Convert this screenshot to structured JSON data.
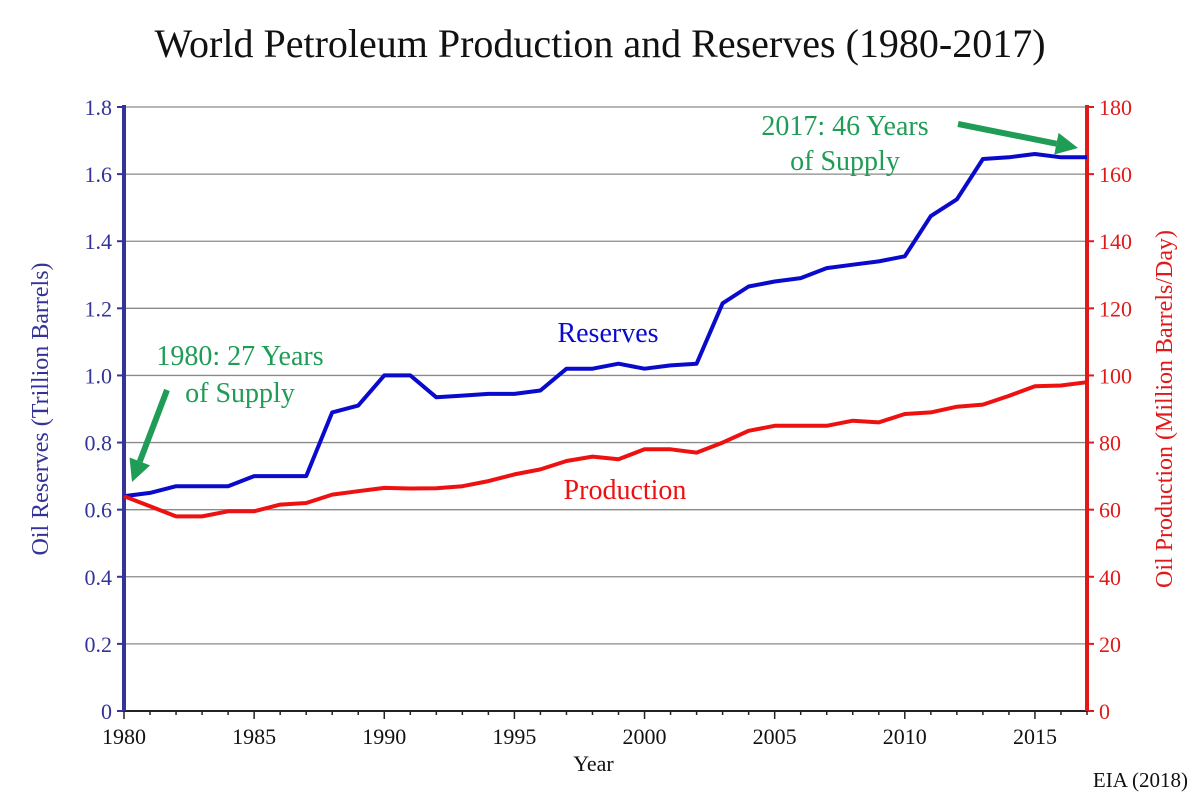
{
  "chart_data": {
    "type": "line",
    "title": "World Petroleum Production and Reserves (1980-2017)",
    "xlabel": "Year",
    "ylabel_left": "Oil Reserves (Trillion Barrels)",
    "ylabel_right": "Oil Production (Million Barrels/Day)",
    "source": "EIA (2018)",
    "xlim": [
      1980,
      2017
    ],
    "ylim_left": [
      0,
      1.8
    ],
    "ylim_right": [
      0,
      180
    ],
    "x_ticks": [
      "1980",
      "1985",
      "1990",
      "1995",
      "2000",
      "2005",
      "2010",
      "2015"
    ],
    "y_left_ticks": [
      "0",
      "0.2",
      "0.4",
      "0.6",
      "0.8",
      "1.0",
      "1.2",
      "1.4",
      "1.6",
      "1.8"
    ],
    "y_right_ticks": [
      "0",
      "20",
      "40",
      "60",
      "80",
      "100",
      "120",
      "140",
      "160",
      "180"
    ],
    "grid": true,
    "x": [
      1980,
      1981,
      1982,
      1983,
      1984,
      1985,
      1986,
      1987,
      1988,
      1989,
      1990,
      1991,
      1992,
      1993,
      1994,
      1995,
      1996,
      1997,
      1998,
      1999,
      2000,
      2001,
      2002,
      2003,
      2004,
      2005,
      2006,
      2007,
      2008,
      2009,
      2010,
      2011,
      2012,
      2013,
      2014,
      2015,
      2016,
      2017
    ],
    "series": [
      {
        "name": "Reserves",
        "axis": "left",
        "color": "#0a0acc",
        "values": [
          0.64,
          0.65,
          0.67,
          0.67,
          0.67,
          0.7,
          0.7,
          0.7,
          0.89,
          0.91,
          1.0,
          1.0,
          0.935,
          0.94,
          0.945,
          0.945,
          0.955,
          1.02,
          1.02,
          1.035,
          1.02,
          1.03,
          1.035,
          1.215,
          1.265,
          1.28,
          1.29,
          1.32,
          1.33,
          1.34,
          1.355,
          1.475,
          1.525,
          1.645,
          1.65,
          1.66,
          1.65,
          1.65
        ]
      },
      {
        "name": "Production",
        "axis": "right",
        "color": "#ee1111",
        "values": [
          64,
          61,
          58,
          58,
          59.5,
          59.5,
          61.5,
          62,
          64.5,
          65.5,
          66.5,
          66.3,
          66.4,
          67,
          68.5,
          70.5,
          72,
          74.5,
          75.8,
          75,
          78,
          78,
          77,
          80,
          83.5,
          85,
          85,
          85,
          86.5,
          86,
          88.5,
          89,
          90.7,
          91.3,
          93.9,
          96.8,
          97,
          98
        ]
      }
    ],
    "annotations": [
      {
        "lines": [
          "1980:  27 Years",
          "of Supply"
        ],
        "points_to_year": 1980,
        "color": "#1f9c55"
      },
      {
        "lines": [
          "2017:  46 Years",
          "of Supply"
        ],
        "points_to_year": 2017,
        "color": "#1f9c55"
      }
    ],
    "colors": {
      "left_axis": "#33339a",
      "right_axis": "#e01a1a",
      "grid": "#8a8a8a"
    }
  }
}
